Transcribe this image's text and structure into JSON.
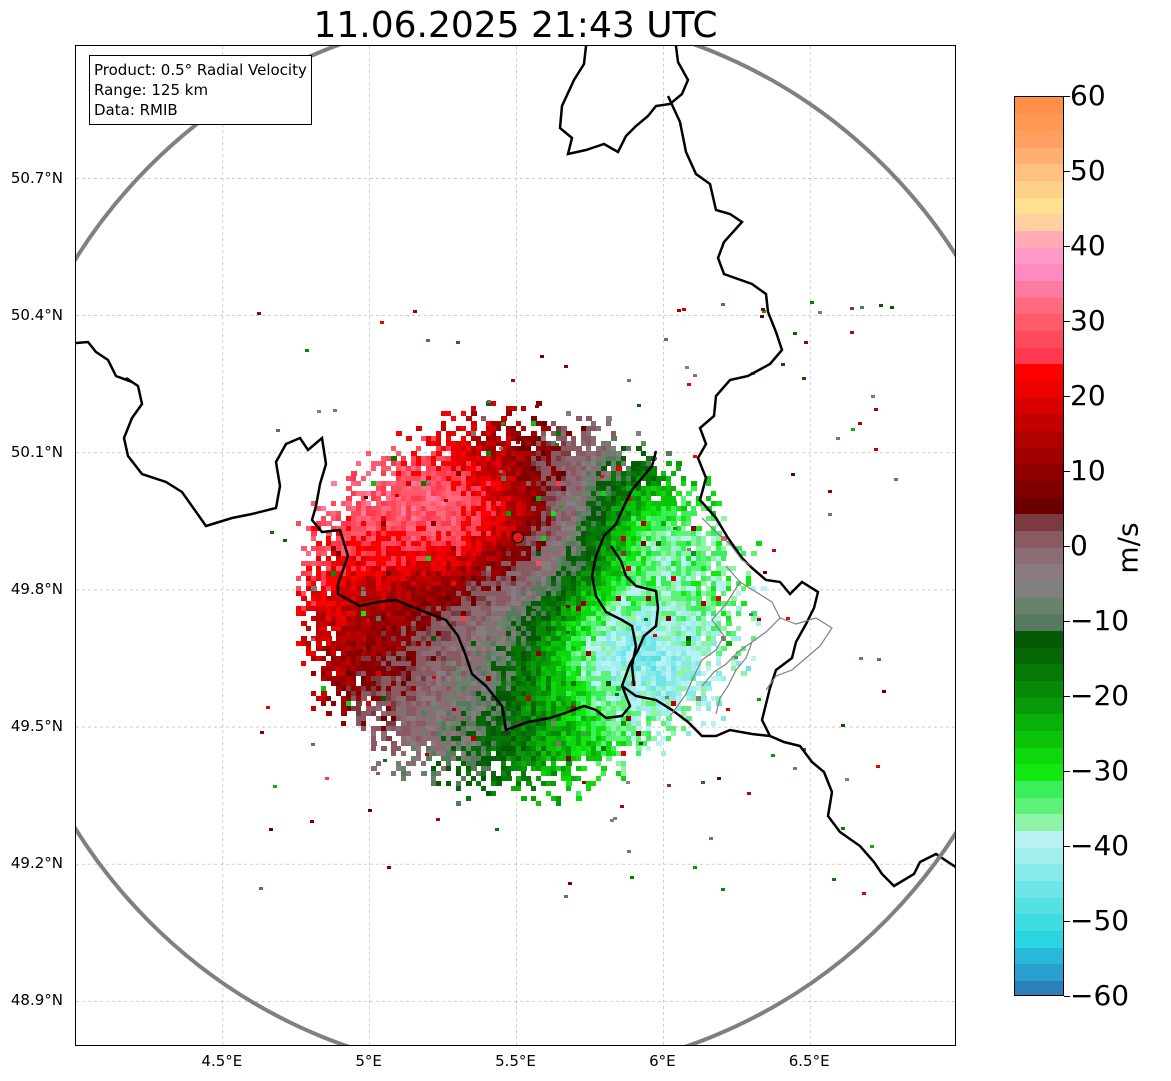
{
  "map": {
    "title": "11.06.2025 21:43 UTC",
    "info": {
      "product": "Product: 0.5° Radial Velocity",
      "range": "Range: 125 km",
      "source": "Data: RMIB"
    },
    "extent": {
      "lon_min": 4.0,
      "lon_max": 7.0,
      "lat_min": 48.8,
      "lat_max": 50.99
    },
    "radar_site": {
      "lon": 5.505,
      "lat": 49.915,
      "color": "#e41a1c"
    },
    "range_ring_km": 125,
    "lat_ticks": [
      {
        "value": 50.7,
        "label": "50.7°N"
      },
      {
        "value": 50.4,
        "label": "50.4°N"
      },
      {
        "value": 50.1,
        "label": "50.1°N"
      },
      {
        "value": 49.8,
        "label": "49.8°N"
      },
      {
        "value": 49.5,
        "label": "49.5°N"
      },
      {
        "value": 49.2,
        "label": "49.2°N"
      },
      {
        "value": 48.9,
        "label": "48.9°N"
      }
    ],
    "lon_ticks": [
      {
        "value": 4.5,
        "label": "4.5°E"
      },
      {
        "value": 5.0,
        "label": "5°E"
      },
      {
        "value": 5.5,
        "label": "5.5°E"
      },
      {
        "value": 6.0,
        "label": "6°E"
      },
      {
        "value": 6.5,
        "label": "6.5°E"
      }
    ],
    "country_border_colors": {
      "national": "#000000",
      "regional": "#808080",
      "ring": "#808080"
    }
  },
  "colorbar": {
    "unit": "m/s",
    "min": -60,
    "max": 60,
    "ticks": [
      {
        "value": 60,
        "label": "60"
      },
      {
        "value": 50,
        "label": "50"
      },
      {
        "value": 40,
        "label": "40"
      },
      {
        "value": 30,
        "label": "30"
      },
      {
        "value": 20,
        "label": "20"
      },
      {
        "value": 10,
        "label": "10"
      },
      {
        "value": 0,
        "label": "0"
      },
      {
        "value": -10,
        "label": "−10"
      },
      {
        "value": -20,
        "label": "−20"
      },
      {
        "value": -30,
        "label": "−30"
      },
      {
        "value": -40,
        "label": "−40"
      },
      {
        "value": -50,
        "label": "−50"
      },
      {
        "value": -60,
        "label": "−60"
      }
    ],
    "colors": [
      "#2c7fb8",
      "#2a9fd0",
      "#2ab8d8",
      "#2ad4e0",
      "#3ddde2",
      "#55e0e4",
      "#6ee5e7",
      "#88e9ea",
      "#a0eeee",
      "#b8f2f2",
      "#8ef5a8",
      "#5ef27a",
      "#3af05a",
      "#10e810",
      "#0cd80c",
      "#0ac40a",
      "#08b008",
      "#089a08",
      "#078807",
      "#067806",
      "#066806",
      "#055a05",
      "#567a5e",
      "#6a826c",
      "#808080",
      "#8a7a7e",
      "#8c6c74",
      "#8a5a62",
      "#7a3a40",
      "#6a0000",
      "#800000",
      "#900000",
      "#a00000",
      "#b00000",
      "#c40000",
      "#d80000",
      "#ec0000",
      "#ff0000",
      "#ff3a50",
      "#ff4a5c",
      "#ff5a6c",
      "#ff6a80",
      "#ff7aa0",
      "#ff8ac0",
      "#ff9ac8",
      "#ffaab4",
      "#ffd0a0",
      "#ffe090",
      "#ffd089",
      "#ffc080",
      "#ffb070",
      "#ffa060",
      "#ff9850",
      "#ff9048"
    ]
  }
}
